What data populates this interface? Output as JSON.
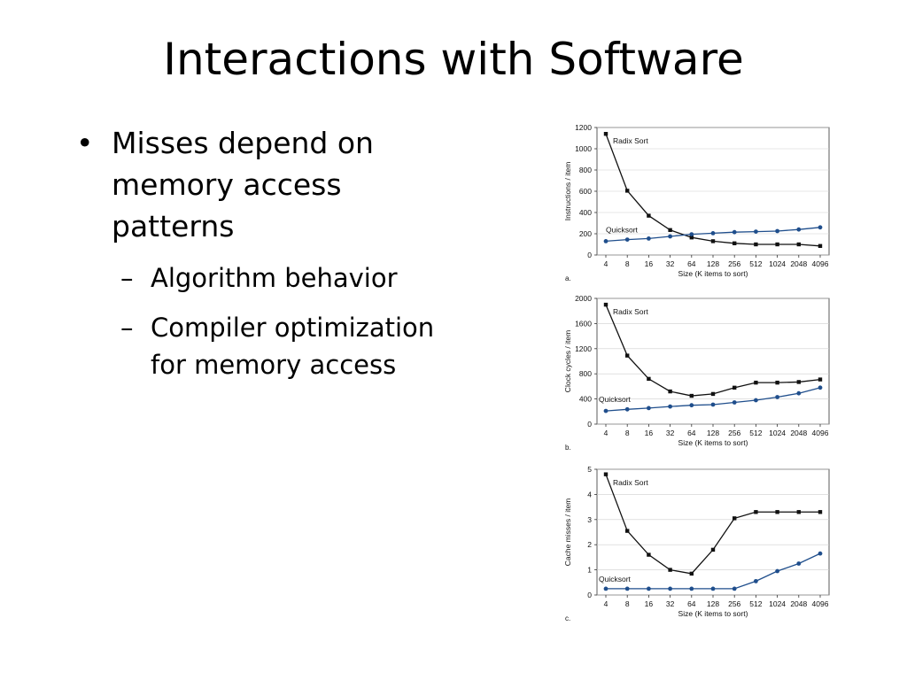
{
  "slide": {
    "title": "Interactions with Software",
    "bullets": [
      {
        "text": "Misses depend on memory access patterns",
        "lines": [
          "Misses depend on",
          "memory access",
          "patterns"
        ]
      },
      {
        "text": "Algorithm behavior",
        "lines": [
          "Algorithm behavior"
        ],
        "sub": true
      },
      {
        "text": "Compiler optimization for memory access",
        "lines": [
          "Compiler optimization",
          "for memory access"
        ],
        "sub": true
      }
    ],
    "bullet_symbol": "•",
    "dash_symbol": "–"
  },
  "chart_data": [
    {
      "type": "line",
      "panel_label": "a.",
      "xlabel": "Size (K items to sort)",
      "ylabel": "Instructions / item",
      "categories": [
        "4",
        "8",
        "16",
        "32",
        "64",
        "128",
        "256",
        "512",
        "1024",
        "2048",
        "4096"
      ],
      "ylim": [
        0,
        1200
      ],
      "yticks": [
        0,
        200,
        400,
        600,
        800,
        1000,
        1200
      ],
      "series": [
        {
          "name": "Radix Sort",
          "marker": "square",
          "color": "#111111",
          "values": [
            1140,
            605,
            370,
            235,
            165,
            130,
            110,
            100,
            100,
            100,
            85
          ]
        },
        {
          "name": "Quicksort",
          "marker": "circle",
          "color": "#1f4e8c",
          "values": [
            130,
            145,
            155,
            175,
            195,
            205,
            215,
            220,
            225,
            240,
            260
          ]
        }
      ]
    },
    {
      "type": "line",
      "panel_label": "b.",
      "xlabel": "Size (K items to sort)",
      "ylabel": "Clock cycles / item",
      "categories": [
        "4",
        "8",
        "16",
        "32",
        "64",
        "128",
        "256",
        "512",
        "1024",
        "2048",
        "4096"
      ],
      "ylim": [
        0,
        2000
      ],
      "yticks": [
        0,
        400,
        800,
        1200,
        1600,
        2000
      ],
      "series": [
        {
          "name": "Radix Sort",
          "marker": "square",
          "color": "#111111",
          "values": [
            1900,
            1090,
            720,
            520,
            450,
            480,
            580,
            660,
            660,
            670,
            710
          ]
        },
        {
          "name": "Quicksort",
          "marker": "circle",
          "color": "#1f4e8c",
          "values": [
            210,
            235,
            255,
            280,
            300,
            310,
            345,
            380,
            430,
            490,
            580
          ]
        }
      ]
    },
    {
      "type": "line",
      "panel_label": "c.",
      "xlabel": "Size (K items to sort)",
      "ylabel": "Cache misses / item",
      "categories": [
        "4",
        "8",
        "16",
        "32",
        "64",
        "128",
        "256",
        "512",
        "1024",
        "2048",
        "4096"
      ],
      "ylim": [
        0,
        5
      ],
      "yticks": [
        0,
        1,
        2,
        3,
        4,
        5
      ],
      "series": [
        {
          "name": "Radix Sort",
          "marker": "square",
          "color": "#111111",
          "values": [
            4.8,
            2.55,
            1.6,
            1.0,
            0.85,
            1.8,
            3.05,
            3.3,
            3.3,
            3.3,
            3.3
          ]
        },
        {
          "name": "Quicksort",
          "marker": "circle",
          "color": "#1f4e8c",
          "values": [
            0.25,
            0.25,
            0.25,
            0.25,
            0.25,
            0.25,
            0.25,
            0.55,
            0.95,
            1.25,
            1.65
          ]
        }
      ]
    }
  ]
}
